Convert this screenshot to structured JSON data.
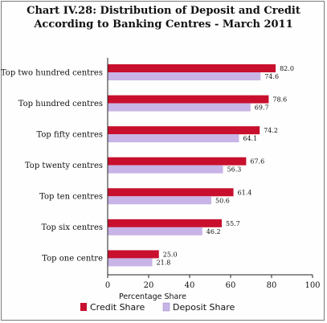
{
  "chart_data": {
    "type": "bar",
    "orientation": "horizontal",
    "title_line1": "Chart IV.28: Distribution of Deposit and Credit",
    "title_line2": "According to Banking Centres - March 2011",
    "categories": [
      "Top two hundred centres",
      "Top hundred centres",
      "Top fifty centres",
      "Top twenty centres",
      "Top ten centres",
      "Top six centres",
      "Top one centre"
    ],
    "series": [
      {
        "name": "Credit Share",
        "color": "#c8102e",
        "values": [
          82.0,
          78.6,
          74.2,
          67.6,
          61.4,
          55.7,
          25.0
        ]
      },
      {
        "name": "Deposit Share",
        "color": "#c8b4e6",
        "values": [
          74.6,
          69.7,
          64.1,
          56.3,
          50.6,
          46.2,
          21.8
        ]
      }
    ],
    "xlabel": "Percentage Share",
    "xlim": [
      0,
      100
    ],
    "xticks": [
      0,
      20,
      40,
      60,
      80,
      100
    ],
    "grid": false,
    "legend_position": "bottom"
  }
}
